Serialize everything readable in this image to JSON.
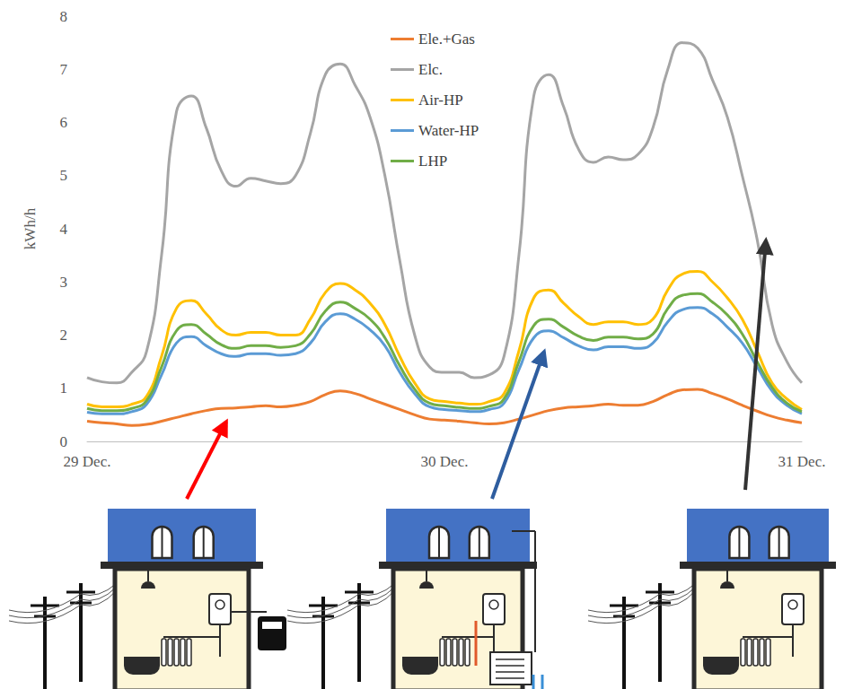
{
  "chart_data": {
    "type": "line",
    "y_label": "kWh/h",
    "categories": [
      "29 Dec.",
      null,
      null,
      null,
      null,
      null,
      null,
      null,
      null,
      null,
      null,
      null,
      null,
      null,
      null,
      null,
      null,
      null,
      null,
      null,
      null,
      null,
      null,
      null,
      "30 Dec.",
      null,
      null,
      null,
      null,
      null,
      null,
      null,
      null,
      null,
      null,
      null,
      null,
      null,
      null,
      null,
      null,
      null,
      null,
      null,
      null,
      null,
      null,
      null,
      "31 Dec."
    ],
    "series": [
      {
        "name": "Ele.+Gas",
        "color": "#ED7D31",
        "values": [
          0.38,
          0.35,
          0.33,
          0.3,
          0.32,
          0.38,
          0.45,
          0.52,
          0.58,
          0.62,
          0.63,
          0.65,
          0.67,
          0.65,
          0.68,
          0.75,
          0.88,
          0.95,
          0.9,
          0.8,
          0.7,
          0.6,
          0.5,
          0.42,
          0.4,
          0.38,
          0.35,
          0.33,
          0.35,
          0.42,
          0.5,
          0.58,
          0.63,
          0.65,
          0.67,
          0.7,
          0.68,
          0.68,
          0.75,
          0.88,
          0.97,
          0.98,
          0.9,
          0.8,
          0.68,
          0.57,
          0.47,
          0.4,
          0.35
        ]
      },
      {
        "name": "Elc.",
        "color": "#A5A5A5",
        "values": [
          1.2,
          1.12,
          1.1,
          1.3,
          1.7,
          3.5,
          6.2,
          6.5,
          5.9,
          5.1,
          4.8,
          4.95,
          4.9,
          4.85,
          5.0,
          5.8,
          6.9,
          7.1,
          6.7,
          6.1,
          5.0,
          3.4,
          2.0,
          1.4,
          1.3,
          1.3,
          1.2,
          1.25,
          1.6,
          3.5,
          6.5,
          6.9,
          6.3,
          5.5,
          5.25,
          5.35,
          5.3,
          5.4,
          5.9,
          7.0,
          7.5,
          7.4,
          6.8,
          6.1,
          5.0,
          3.8,
          2.2,
          1.5,
          1.1
        ]
      },
      {
        "name": "Air-HP",
        "color": "#FFC000",
        "values": [
          0.7,
          0.65,
          0.65,
          0.7,
          0.85,
          1.6,
          2.5,
          2.65,
          2.4,
          2.1,
          2.0,
          2.05,
          2.05,
          2.0,
          2.0,
          2.3,
          2.8,
          2.97,
          2.85,
          2.6,
          2.2,
          1.6,
          1.1,
          0.8,
          0.75,
          0.72,
          0.7,
          0.75,
          0.9,
          1.7,
          2.7,
          2.85,
          2.6,
          2.35,
          2.2,
          2.25,
          2.25,
          2.2,
          2.3,
          2.85,
          3.15,
          3.2,
          3.0,
          2.7,
          2.3,
          1.7,
          1.1,
          0.8,
          0.6
        ]
      },
      {
        "name": "Water-HP",
        "color": "#5B9BD5",
        "values": [
          0.55,
          0.52,
          0.52,
          0.56,
          0.7,
          1.25,
          1.85,
          1.97,
          1.8,
          1.65,
          1.6,
          1.65,
          1.65,
          1.62,
          1.65,
          1.85,
          2.25,
          2.4,
          2.3,
          2.1,
          1.8,
          1.3,
          0.9,
          0.65,
          0.6,
          0.58,
          0.56,
          0.6,
          0.72,
          1.35,
          1.95,
          2.08,
          1.95,
          1.8,
          1.72,
          1.78,
          1.78,
          1.75,
          1.85,
          2.25,
          2.48,
          2.52,
          2.4,
          2.15,
          1.85,
          1.4,
          0.95,
          0.68,
          0.52
        ]
      },
      {
        "name": "LHP",
        "color": "#70AD47",
        "values": [
          0.62,
          0.58,
          0.58,
          0.62,
          0.77,
          1.4,
          2.08,
          2.2,
          2.02,
          1.82,
          1.75,
          1.8,
          1.8,
          1.77,
          1.8,
          2.02,
          2.45,
          2.62,
          2.5,
          2.3,
          1.95,
          1.42,
          0.98,
          0.72,
          0.67,
          0.64,
          0.62,
          0.66,
          0.8,
          1.5,
          2.18,
          2.3,
          2.15,
          1.98,
          1.9,
          1.96,
          1.96,
          1.93,
          2.02,
          2.5,
          2.75,
          2.78,
          2.62,
          2.38,
          2.02,
          1.5,
          1.02,
          0.72,
          0.56
        ]
      }
    ],
    "ylim": [
      0,
      8
    ],
    "yticks": [
      0,
      1,
      2,
      3,
      4,
      5,
      6,
      7,
      8
    ],
    "grid": false,
    "legend": "top"
  }
}
